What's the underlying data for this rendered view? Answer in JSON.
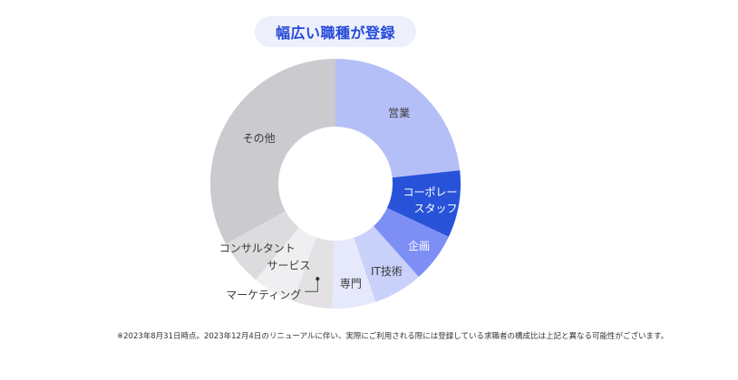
{
  "chart_data": {
    "type": "pie",
    "subtype": "donut",
    "title": "幅広い職種が登録",
    "categories": [
      "営業",
      "コーポレートスタッフ",
      "企画",
      "IT技術",
      "専門",
      "マーケティング",
      "サービス",
      "コンサルタント",
      "その他"
    ],
    "label_lines": [
      [
        "営業"
      ],
      [
        "コーポレート",
        "スタッフ"
      ],
      [
        "企画"
      ],
      [
        "IT技術"
      ],
      [
        "専門"
      ],
      [
        "マーケティング"
      ],
      [
        "サービス"
      ],
      [
        "コンサルタント"
      ],
      [
        "その他"
      ]
    ],
    "values": [
      23.3,
      8.7,
      6.4,
      6.4,
      5.6,
      5.1,
      5.5,
      6.0,
      33.0
    ],
    "colors": [
      "#b5bff7",
      "#2853d9",
      "#7d8ff5",
      "#c9d0fa",
      "#e6e9fc",
      "#e4e1e5",
      "#efeff2",
      "#dcdcde",
      "#cbcacf"
    ],
    "legend": "none"
  },
  "footnote": "※2023年8月31日時点。2023年12月4日のリニューアルに伴い、実際にご利用される際には登録している求職者の構成比は上記と異なる可能性がございます。"
}
